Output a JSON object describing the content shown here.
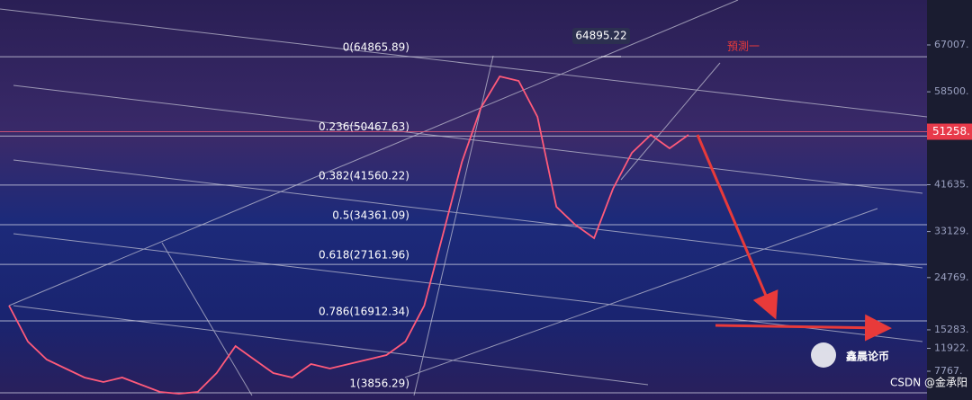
{
  "chart_data": {
    "type": "line",
    "categories": [
      null,
      null,
      null,
      null,
      null,
      null,
      null,
      null,
      null,
      null,
      null,
      null,
      null,
      null,
      null,
      null,
      null,
      null,
      null,
      null,
      null,
      null,
      null,
      null,
      null,
      null,
      null,
      null,
      null,
      null,
      null,
      null,
      null,
      null,
      null,
      null,
      null
    ],
    "series": [
      {
        "color": "#ff5a7a",
        "values": [
          19679,
          13152,
          9887,
          8255,
          6623,
          5807,
          6623,
          5317,
          4012,
          3685,
          4012,
          7439,
          12335,
          9887,
          7439,
          6623,
          9071,
          8255,
          9071,
          9887,
          10703,
          13152,
          19679,
          32735,
          45791,
          55583,
          61295,
          60479,
          53951,
          37631,
          34367,
          31919,
          40895,
          47423,
          50687,
          48239,
          50687
        ]
      }
    ],
    "ylim": [
      2545,
      75167
    ],
    "yticks": [
      {
        "value": 67007,
        "label": "67007."
      },
      {
        "value": 58500,
        "label": "58500."
      },
      {
        "value": 41635,
        "label": "41635."
      },
      {
        "value": 33129,
        "label": "33129."
      },
      {
        "value": 24769,
        "label": "24769."
      },
      {
        "value": 15283,
        "label": "15283."
      },
      {
        "value": 11922,
        "label": "11922."
      },
      {
        "value": 7767,
        "label": "7767."
      }
    ],
    "fib_levels": [
      {
        "value": 64865.89,
        "label": "0(64865.89)"
      },
      {
        "value": 50467.63,
        "label": "0.236(50467.63)"
      },
      {
        "value": 41560.22,
        "label": "0.382(41560.22)"
      },
      {
        "value": 34361.09,
        "label": "0.5(34361.09)"
      },
      {
        "value": 27161.96,
        "label": "0.618(27161.96)"
      },
      {
        "value": 16912.34,
        "label": "0.786(16912.34)"
      },
      {
        "value": 3856.29,
        "label": "1(3856.29)"
      }
    ],
    "peak": {
      "value": 64895.22,
      "label": "64895.22"
    },
    "last_price": {
      "value": 51258,
      "label": "51258."
    },
    "forecast": "預測一",
    "watermark": "鑫晨论币",
    "credit": "CSDN @金承阳"
  }
}
